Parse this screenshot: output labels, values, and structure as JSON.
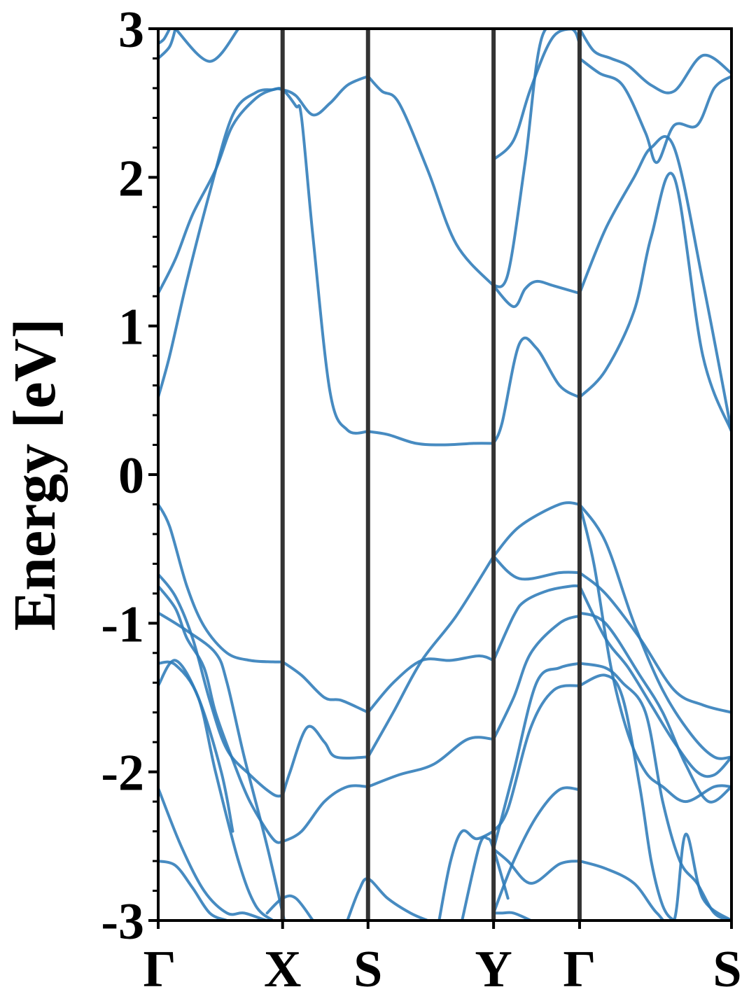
{
  "chart_data": {
    "type": "line",
    "title": "",
    "xlabel": "",
    "ylabel": "Energy [eV]",
    "ylim": [
      -3,
      3
    ],
    "yticks": [
      {
        "value": 3,
        "label": "3"
      },
      {
        "value": 2,
        "label": "2"
      },
      {
        "value": 1,
        "label": "1"
      },
      {
        "value": 0,
        "label": "0"
      },
      {
        "value": -1,
        "label": "-1"
      },
      {
        "value": -2,
        "label": "-2"
      },
      {
        "value": -3,
        "label": "-3"
      }
    ],
    "minor_ytick_step": 0.2,
    "kpath": [
      {
        "label": "Γ",
        "position": 0.0
      },
      {
        "label": "X",
        "position": 0.217
      },
      {
        "label": "S",
        "position": 0.366
      },
      {
        "label": "Y",
        "position": 0.585
      },
      {
        "label": "Γ",
        "position": 0.735
      },
      {
        "label": "S",
        "position": 1.0
      }
    ],
    "grid": false,
    "band_color": "#2e7bb8",
    "vline_color": "#333333",
    "series": [
      {
        "x": [
          0,
          0.03,
          0.06,
          0.1,
          0.13,
          0.17,
          0.2,
          0.217,
          0.24,
          0.27,
          0.3,
          0.33,
          0.366
        ],
        "y": [
          1.22,
          1.45,
          1.75,
          2.05,
          2.35,
          2.53,
          2.59,
          2.59,
          2.55,
          2.42,
          2.5,
          2.62,
          2.68
        ]
      },
      {
        "x": [
          0,
          0.02,
          0.05,
          0.09,
          0.13,
          0.17,
          0.2,
          0.217,
          0.24,
          0.25,
          0.27,
          0.3,
          0.33,
          0.366
        ],
        "y": [
          0.52,
          0.8,
          1.3,
          1.9,
          2.42,
          2.57,
          2.59,
          2.59,
          2.48,
          2.4,
          1.6,
          0.55,
          0.3,
          0.29
        ]
      },
      {
        "x": [
          0.366,
          0.4,
          0.45,
          0.5,
          0.55,
          0.585
        ],
        "y": [
          0.29,
          0.27,
          0.21,
          0.2,
          0.21,
          0.21
        ]
      },
      {
        "x": [
          0.366,
          0.39,
          0.42,
          0.47,
          0.52,
          0.585
        ],
        "y": [
          2.68,
          2.58,
          2.5,
          2.05,
          1.55,
          1.27
        ]
      },
      {
        "x": [
          0.585,
          0.6,
          0.63,
          0.66,
          0.7,
          0.735
        ],
        "y": [
          0.21,
          0.35,
          0.88,
          0.85,
          0.6,
          0.52
        ]
      },
      {
        "x": [
          0.585,
          0.62,
          0.64,
          0.66,
          0.69,
          0.735
        ],
        "y": [
          1.27,
          1.13,
          1.25,
          1.3,
          1.27,
          1.22
        ]
      },
      {
        "x": [
          0.585,
          0.62,
          0.65,
          0.69,
          0.735
        ],
        "y": [
          2.12,
          2.25,
          2.6,
          2.95,
          3.0
        ]
      },
      {
        "x": [
          0.585,
          0.61,
          0.64,
          0.67,
          0.72,
          0.735
        ],
        "y": [
          1.27,
          1.35,
          2.1,
          2.95,
          3.0,
          2.9
        ]
      },
      {
        "x": [
          0.735,
          0.78,
          0.83,
          0.86,
          0.9,
          0.95,
          1.0
        ],
        "y": [
          0.52,
          0.7,
          1.1,
          1.6,
          2.0,
          0.8,
          0.29
        ]
      },
      {
        "x": [
          0.735,
          0.78,
          0.83,
          0.86,
          0.9,
          0.95,
          1.0
        ],
        "y": [
          1.22,
          1.65,
          2.0,
          2.2,
          2.2,
          1.3,
          0.29
        ]
      },
      {
        "x": [
          0.735,
          0.77,
          0.81,
          0.85,
          0.87,
          0.9,
          0.94,
          0.97,
          1.0
        ],
        "y": [
          2.8,
          2.7,
          2.62,
          2.3,
          2.1,
          2.35,
          2.35,
          2.6,
          2.68
        ]
      },
      {
        "x": [
          0.735,
          0.76,
          0.79,
          0.82,
          0.86,
          0.9,
          0.95,
          1.0
        ],
        "y": [
          3.0,
          2.85,
          2.8,
          2.75,
          2.62,
          2.58,
          2.82,
          2.7
        ]
      },
      {
        "x": [
          0,
          0.01,
          0.02
        ],
        "y": [
          2.9,
          2.93,
          3.0
        ]
      },
      {
        "x": [
          0,
          0.02,
          0.03
        ],
        "y": [
          2.8,
          2.88,
          3.0
        ]
      },
      {
        "x": [
          0.03,
          0.09,
          0.14
        ],
        "y": [
          3.0,
          2.78,
          3.0
        ]
      },
      {
        "x": [
          0,
          0.02,
          0.05,
          0.08,
          0.12,
          0.16,
          0.2,
          0.217
        ],
        "y": [
          -0.2,
          -0.35,
          -0.75,
          -1.02,
          -1.2,
          -1.25,
          -1.26,
          -1.26
        ]
      },
      {
        "x": [
          0.217,
          0.25,
          0.29,
          0.32,
          0.366
        ],
        "y": [
          -1.26,
          -1.35,
          -1.5,
          -1.52,
          -1.6
        ]
      },
      {
        "x": [
          0.366,
          0.41,
          0.46,
          0.51,
          0.56,
          0.585
        ],
        "y": [
          -1.6,
          -1.4,
          -1.25,
          -1.25,
          -1.22,
          -1.25
        ]
      },
      {
        "x": [
          0.585,
          0.63,
          0.7,
          0.735
        ],
        "y": [
          -0.55,
          -0.7,
          -0.66,
          -0.66
        ]
      },
      {
        "x": [
          0.366,
          0.41,
          0.46,
          0.52,
          0.585
        ],
        "y": [
          -1.9,
          -1.6,
          -1.25,
          -0.95,
          -0.55
        ]
      },
      {
        "x": [
          0.585,
          0.63,
          0.7,
          0.735
        ],
        "y": [
          -0.55,
          -0.35,
          -0.2,
          -0.2
        ]
      },
      {
        "x": [
          0,
          0.03,
          0.06,
          0.09,
          0.12,
          0.16,
          0.2,
          0.217
        ],
        "y": [
          -0.67,
          -0.82,
          -1.1,
          -1.52,
          -1.85,
          -2.02,
          -2.15,
          -2.16
        ]
      },
      {
        "x": [
          0.217,
          0.23,
          0.26,
          0.29,
          0.31,
          0.366
        ],
        "y": [
          -2.16,
          -2.0,
          -1.7,
          -1.8,
          -1.9,
          -1.9
        ]
      },
      {
        "x": [
          0,
          0.03,
          0.05,
          0.08,
          0.1,
          0.13,
          0.16,
          0.2,
          0.217
        ],
        "y": [
          -0.75,
          -0.9,
          -1.1,
          -1.3,
          -1.6,
          -1.92,
          -2.2,
          -2.45,
          -2.47
        ]
      },
      {
        "x": [
          0.217,
          0.25,
          0.29,
          0.33,
          0.366
        ],
        "y": [
          -2.47,
          -2.4,
          -2.2,
          -2.1,
          -2.1
        ]
      },
      {
        "x": [
          0.366,
          0.42,
          0.48,
          0.54,
          0.585
        ],
        "y": [
          -2.1,
          -2.02,
          -1.95,
          -1.78,
          -1.78
        ]
      },
      {
        "x": [
          0,
          0.05,
          0.1,
          0.12,
          0.15,
          0.19,
          0.22
        ],
        "y": [
          -0.93,
          -1.05,
          -1.2,
          -1.4,
          -1.9,
          -2.5,
          -3.0
        ]
      },
      {
        "x": [
          0,
          0.03,
          0.07,
          0.1,
          0.14,
          0.17,
          0.2
        ],
        "y": [
          -1.27,
          -1.28,
          -1.5,
          -2.0,
          -2.6,
          -2.9,
          -3.0
        ]
      },
      {
        "x": [
          0,
          0.03,
          0.07,
          0.11,
          0.13
        ],
        "y": [
          -1.42,
          -1.25,
          -1.5,
          -2.0,
          -2.4
        ]
      },
      {
        "x": [
          0,
          0.04,
          0.08,
          0.12,
          0.15,
          0.19,
          0.21
        ],
        "y": [
          -2.11,
          -2.5,
          -2.8,
          -2.95,
          -2.95,
          -3.0,
          -3.0
        ]
      },
      {
        "x": [
          0,
          0.03,
          0.06,
          0.09,
          0.12
        ],
        "y": [
          -2.6,
          -2.63,
          -2.78,
          -2.95,
          -3.0
        ]
      },
      {
        "x": [
          0.19,
          0.217,
          0.24,
          0.27
        ],
        "y": [
          -2.95,
          -2.85,
          -2.85,
          -3.0
        ]
      },
      {
        "x": [
          0.33,
          0.35,
          0.366,
          0.4,
          0.44,
          0.47
        ],
        "y": [
          -3.0,
          -2.8,
          -2.72,
          -2.85,
          -2.95,
          -3.0
        ]
      },
      {
        "x": [
          0.49,
          0.51,
          0.53,
          0.555,
          0.585
        ],
        "y": [
          -3.0,
          -2.6,
          -2.4,
          -2.45,
          -2.4
        ]
      },
      {
        "x": [
          0.53,
          0.56,
          0.575,
          0.585,
          0.61
        ],
        "y": [
          -3.0,
          -2.5,
          -2.45,
          -2.52,
          -2.85
        ]
      },
      {
        "x": [
          0.585,
          0.6,
          0.62,
          0.65
        ],
        "y": [
          -2.95,
          -2.95,
          -2.95,
          -3.0
        ]
      },
      {
        "x": [
          0.585,
          0.62,
          0.64,
          0.68,
          0.72,
          0.735
        ],
        "y": [
          -1.25,
          -0.95,
          -0.85,
          -0.78,
          -0.75,
          -0.75
        ]
      },
      {
        "x": [
          0.585,
          0.62,
          0.65,
          0.7,
          0.735
        ],
        "y": [
          -1.78,
          -1.5,
          -1.2,
          -1.0,
          -0.95
        ]
      },
      {
        "x": [
          0.585,
          0.62,
          0.66,
          0.7,
          0.735
        ],
        "y": [
          -2.52,
          -2.0,
          -1.4,
          -1.3,
          -1.27
        ]
      },
      {
        "x": [
          0.585,
          0.61,
          0.65,
          0.69,
          0.735
        ],
        "y": [
          -2.4,
          -2.25,
          -1.7,
          -1.45,
          -1.42
        ]
      },
      {
        "x": [
          0.735,
          0.78,
          0.84,
          0.9,
          0.95,
          1.0
        ],
        "y": [
          -0.66,
          -0.8,
          -1.1,
          -1.45,
          -1.55,
          -1.6
        ]
      },
      {
        "x": [
          0.735,
          0.78,
          0.83,
          0.88,
          0.93,
          0.97,
          1.0
        ],
        "y": [
          -0.2,
          -0.45,
          -1.0,
          -1.45,
          -1.75,
          -1.9,
          -1.9
        ]
      },
      {
        "x": [
          0.735,
          0.76,
          0.79,
          0.82,
          0.85,
          0.88,
          0.92,
          0.97,
          1.0
        ],
        "y": [
          -0.2,
          -0.6,
          -1.3,
          -1.75,
          -2.0,
          -2.1,
          -2.2,
          -2.1,
          -2.1
        ]
      },
      {
        "x": [
          0.735,
          0.78,
          0.82,
          0.86,
          0.9,
          0.94,
          0.97,
          1.0
        ],
        "y": [
          -0.75,
          -1.1,
          -1.3,
          -1.55,
          -1.8,
          -2.0,
          -2.02,
          -1.9
        ]
      },
      {
        "x": [
          0.735,
          0.78,
          0.84,
          0.88,
          0.92,
          0.96,
          1.0
        ],
        "y": [
          -0.93,
          -1.0,
          -1.35,
          -1.6,
          -1.95,
          -2.2,
          -2.1
        ]
      },
      {
        "x": [
          0.735,
          0.78,
          0.81,
          0.85,
          0.88,
          0.91,
          0.94,
          0.97,
          1.0
        ],
        "y": [
          -1.27,
          -1.3,
          -1.4,
          -1.6,
          -2.2,
          -2.6,
          -2.75,
          -2.95,
          -3.0
        ]
      },
      {
        "x": [
          0.735,
          0.78,
          0.81,
          0.84,
          0.86,
          0.88,
          0.9,
          0.92,
          1.0
        ],
        "y": [
          -1.42,
          -1.35,
          -1.5,
          -2.1,
          -2.6,
          -2.9,
          -3.0,
          -3.0,
          -3.0
        ]
      },
      {
        "x": [
          0.585,
          0.62,
          0.66,
          0.7,
          0.735
        ],
        "y": [
          -2.95,
          -2.6,
          -2.3,
          -2.12,
          -2.12
        ]
      },
      {
        "x": [
          0.735,
          0.78,
          0.83,
          0.87,
          0.9,
          0.92,
          0.95,
          1.0
        ],
        "y": [
          -2.6,
          -2.65,
          -2.75,
          -2.95,
          -3.0,
          -2.42,
          -2.85,
          -3.0
        ]
      },
      {
        "x": [
          0.585,
          0.61,
          0.65,
          0.7,
          0.735
        ],
        "y": [
          -2.52,
          -2.6,
          -2.75,
          -2.62,
          -2.6
        ]
      }
    ]
  }
}
